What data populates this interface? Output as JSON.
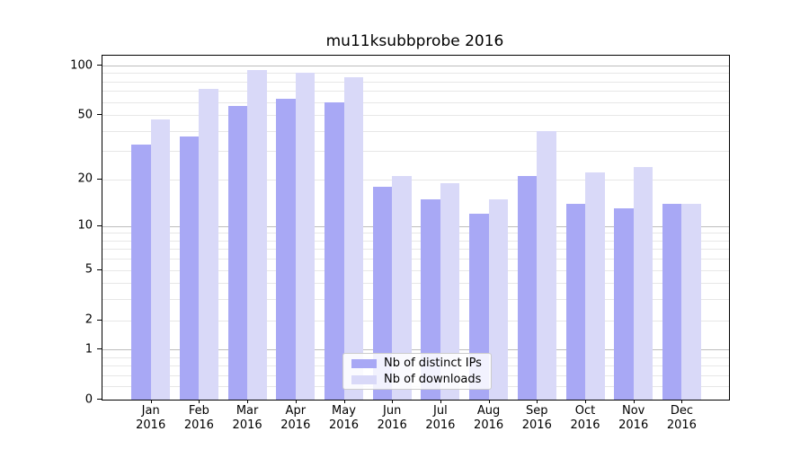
{
  "chart_data": {
    "type": "bar",
    "title": "mu11ksubbprobe 2016",
    "categories": [
      "Jan",
      "Feb",
      "Mar",
      "Apr",
      "May",
      "Jun",
      "Jul",
      "Aug",
      "Sep",
      "Oct",
      "Nov",
      "Dec"
    ],
    "category_year": "2016",
    "series": [
      {
        "name": "Nb of distinct IPs",
        "color": "#a8a8f5",
        "values": [
          33,
          37,
          57,
          63,
          60,
          18,
          15,
          12,
          21,
          14,
          13,
          14
        ]
      },
      {
        "name": "Nb of downloads",
        "color": "#d9d9f8",
        "values": [
          47,
          72,
          94,
          90,
          85,
          21,
          19,
          15,
          40,
          22,
          24,
          14
        ]
      }
    ],
    "xlabel": "",
    "ylabel": "",
    "yscale": "log1p",
    "ylim": [
      0,
      115
    ],
    "yticks": [
      0,
      1,
      2,
      5,
      10,
      20,
      50,
      100
    ],
    "major_gridlines": [
      1,
      10,
      100
    ],
    "minor_gridlines": [
      0.2,
      0.4,
      0.6,
      0.8,
      2,
      3,
      4,
      5,
      6,
      7,
      8,
      9,
      20,
      30,
      40,
      50,
      60,
      70,
      80,
      90
    ],
    "grid": true,
    "legend_position": "lower center"
  },
  "colors": {
    "series_dark": "#a8a8f5",
    "series_light": "#d9d9f8",
    "gridline_major": "#bdbdbd",
    "gridline_minor": "#e7e7e7",
    "axis": "#000000"
  }
}
